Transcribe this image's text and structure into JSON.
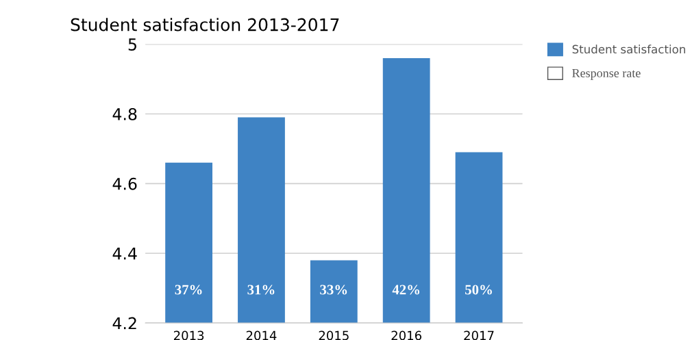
{
  "chart_data": {
    "type": "bar",
    "title": "Student satisfaction 2013-2017",
    "categories": [
      "2013",
      "2014",
      "2015",
      "2016",
      "2017"
    ],
    "series": [
      {
        "name": "Student satisfaction",
        "color": "#3f83c4",
        "values": [
          4.66,
          4.79,
          4.38,
          4.96,
          4.69
        ]
      },
      {
        "name": "Response rate",
        "color": "#ffffff",
        "values": [
          null,
          null,
          null,
          null,
          null
        ],
        "value_labels": [
          "37%",
          "31%",
          "33%",
          "42%",
          "50%"
        ]
      }
    ],
    "ylim": [
      4.2,
      5
    ],
    "yticks": [
      4.2,
      4.4,
      4.6,
      4.8,
      5
    ],
    "grid": "y",
    "legend": "top right"
  }
}
